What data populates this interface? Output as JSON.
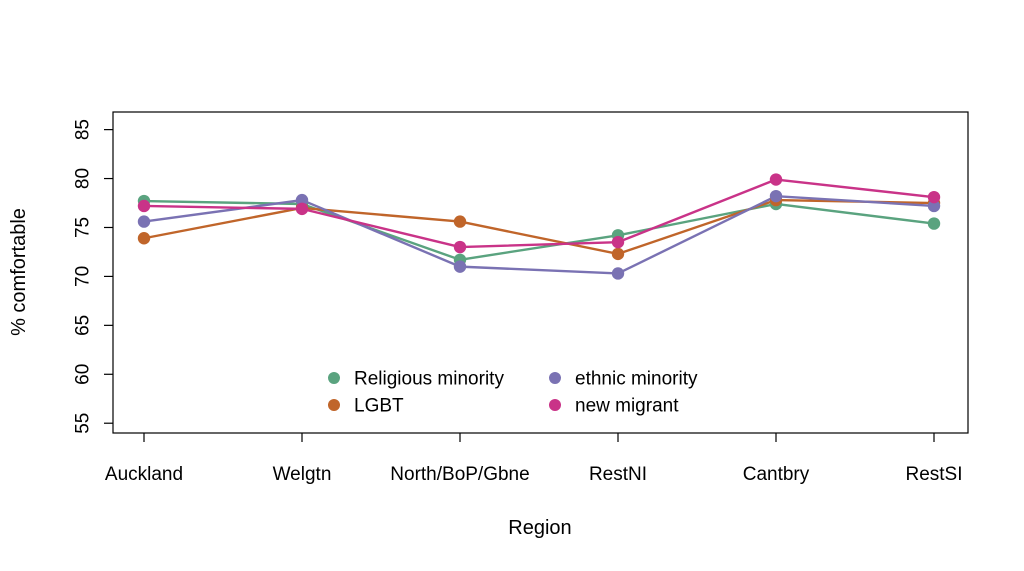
{
  "chart_data": {
    "type": "line",
    "xlabel": "Region",
    "ylabel": "% comfortable",
    "categories": [
      "Auckland",
      "Welgtn",
      "North/BoP/Gbne",
      "RestNI",
      "Cantbry",
      "RestSI"
    ],
    "yticks": [
      55,
      60,
      65,
      70,
      75,
      80,
      85
    ],
    "ylim": [
      54,
      86.8
    ],
    "grid": false,
    "legend_position": "bottom-center",
    "series": [
      {
        "name": "Religious minority",
        "color": "#5aa37f",
        "values": [
          77.7,
          77.4,
          71.7,
          74.2,
          77.4,
          75.4
        ]
      },
      {
        "name": "LGBT",
        "color": "#c0652a",
        "values": [
          73.9,
          77.0,
          75.6,
          72.3,
          77.8,
          77.5
        ]
      },
      {
        "name": "ethnic minority",
        "color": "#7a72b3",
        "values": [
          75.6,
          77.8,
          71.0,
          70.3,
          78.2,
          77.2
        ]
      },
      {
        "name": "new migrant",
        "color": "#c93388",
        "values": [
          77.2,
          76.9,
          73.0,
          73.5,
          79.9,
          78.1
        ]
      }
    ]
  }
}
